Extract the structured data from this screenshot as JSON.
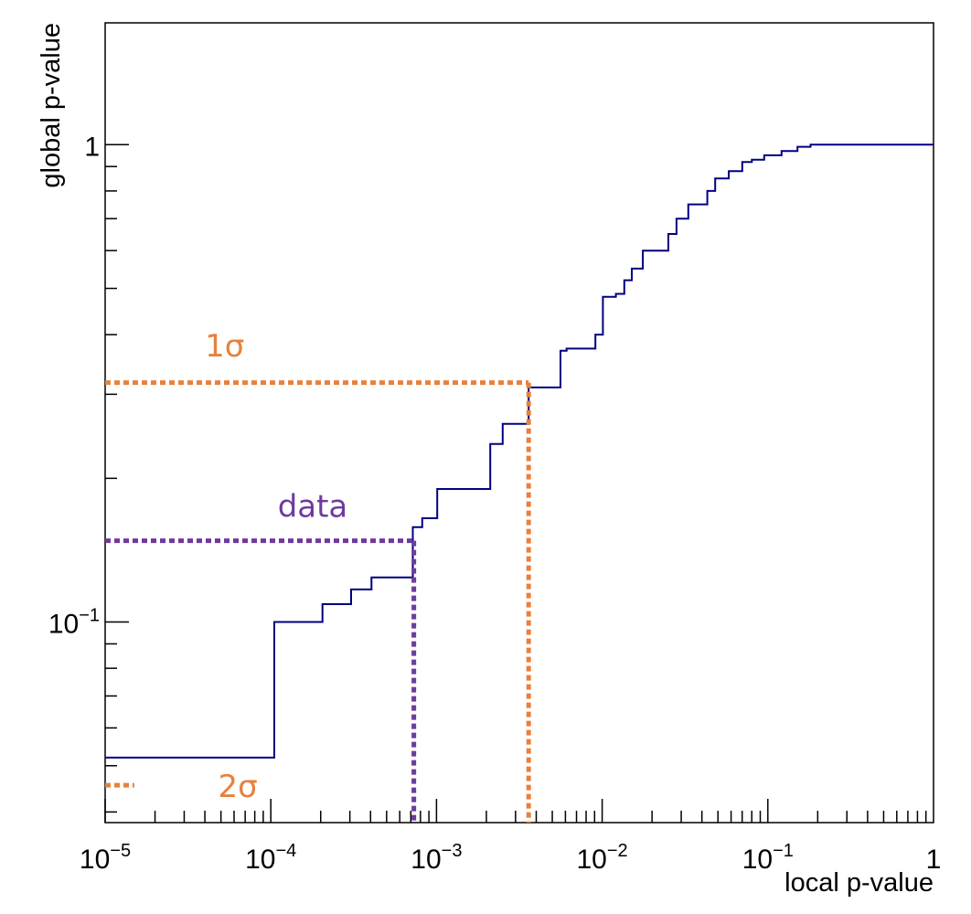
{
  "chart_data": {
    "type": "line",
    "step": true,
    "title": "",
    "xlabel": "local p-value",
    "ylabel": "global p-value",
    "xscale": "log",
    "yscale": "log",
    "xlim": [
      1e-05,
      1
    ],
    "ylim": [
      0.038,
      1.8
    ],
    "grid": false,
    "legend": "none",
    "x_ticks": [
      {
        "value": 1e-05,
        "base": "10",
        "exp": "−5"
      },
      {
        "value": 0.0001,
        "base": "10",
        "exp": "−4"
      },
      {
        "value": 0.001,
        "base": "10",
        "exp": "−3"
      },
      {
        "value": 0.01,
        "base": "10",
        "exp": "−2"
      },
      {
        "value": 0.1,
        "base": "10",
        "exp": "−1"
      },
      {
        "value": 1,
        "base": "1",
        "exp": ""
      }
    ],
    "y_ticks": [
      {
        "value": 0.1,
        "base": "10",
        "exp": "−1"
      },
      {
        "value": 1,
        "base": "1",
        "exp": ""
      }
    ],
    "series": [
      {
        "color": "#000080",
        "x": [
          1e-05,
          0.000105,
          0.000205,
          0.000305,
          0.000405,
          0.00072,
          0.00082,
          0.00101,
          0.00211,
          0.00251,
          0.0036,
          0.0056,
          0.0061,
          0.0091,
          0.0101,
          0.0121,
          0.0136,
          0.0151,
          0.0176,
          0.0251,
          0.0281,
          0.0331,
          0.0431,
          0.0481,
          0.0581,
          0.0701,
          0.0801,
          0.0951,
          0.121,
          0.151,
          0.181,
          1
        ],
        "y": [
          0.052,
          0.1,
          0.109,
          0.117,
          0.124,
          0.158,
          0.165,
          0.19,
          0.236,
          0.26,
          0.31,
          0.37,
          0.374,
          0.4,
          0.48,
          0.487,
          0.52,
          0.55,
          0.6,
          0.65,
          0.7,
          0.75,
          0.8,
          0.85,
          0.88,
          0.92,
          0.93,
          0.95,
          0.97,
          0.99,
          1.0,
          1.0
        ]
      }
    ],
    "annotations": [
      {
        "text": "1σ",
        "color": "#e8803d",
        "x": 0.0036,
        "y": 0.3173,
        "label_x": 4e-05,
        "label_y": 0.36
      },
      {
        "text": "data",
        "color": "#6f3a9e",
        "x": 0.00073,
        "y": 0.148,
        "label_x": 0.00011,
        "label_y": 0.166
      },
      {
        "text": "2σ",
        "color": "#e8803d",
        "x": 1.5e-05,
        "y": 0.0455,
        "label_x": 4.8e-05,
        "label_y": 0.043
      }
    ]
  }
}
